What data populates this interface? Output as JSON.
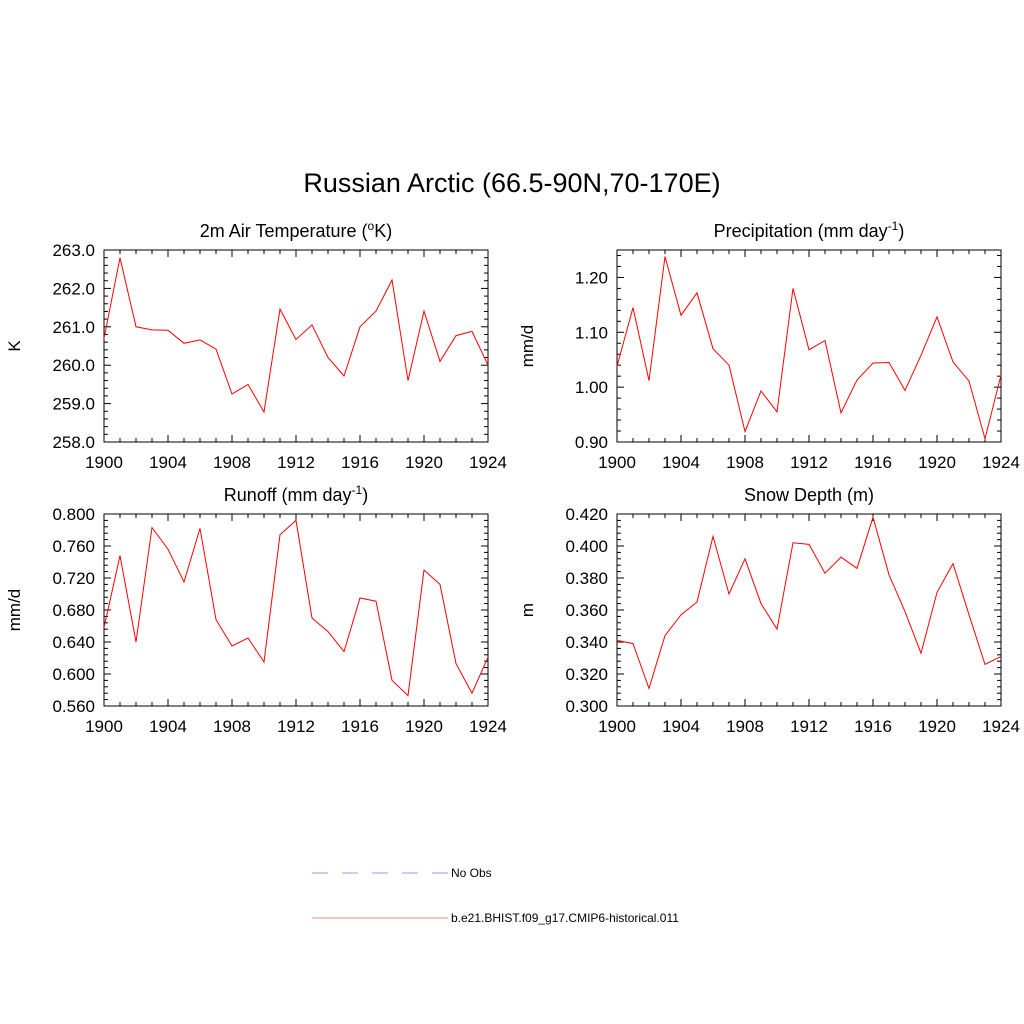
{
  "title": "Russian Arctic (66.5-90N,70-170E)",
  "legend": [
    {
      "label": "No Obs",
      "color": "#9999ff",
      "style": "dashed"
    },
    {
      "label": "b.e21.BHIST.f09_g17.CMIP6-historical.011",
      "color": "#ff0000",
      "style": "solid"
    }
  ],
  "chart_data": [
    {
      "type": "line",
      "title": "2m Air Temperature (°K)",
      "title_parts": {
        "main": "2m Air Temperature (",
        "sup": "o",
        "rest": "K)"
      },
      "ylabel": "K",
      "xlim": [
        1900,
        1924
      ],
      "ylim": [
        258.0,
        263.0
      ],
      "x_ticks": [
        "1900",
        "1904",
        "1908",
        "1912",
        "1916",
        "1920",
        "1924"
      ],
      "y_ticks": [
        "258.0",
        "259.0",
        "260.0",
        "261.0",
        "262.0",
        "263.0"
      ],
      "color": "#ff0000",
      "x": [
        1900,
        1901,
        1902,
        1903,
        1904,
        1905,
        1906,
        1907,
        1908,
        1909,
        1910,
        1911,
        1912,
        1913,
        1914,
        1915,
        1916,
        1917,
        1918,
        1919,
        1920,
        1921,
        1922,
        1923,
        1924
      ],
      "values": [
        260.7,
        262.8,
        261.0,
        260.92,
        260.91,
        260.57,
        260.66,
        260.42,
        259.25,
        259.5,
        258.78,
        261.46,
        260.67,
        261.05,
        260.2,
        259.72,
        261.0,
        261.41,
        262.22,
        259.6,
        261.41,
        260.1,
        260.77,
        260.88,
        260.0
      ]
    },
    {
      "type": "line",
      "title": "Precipitation (mm day-1)",
      "title_parts": {
        "main": "Precipitation (mm day",
        "sup": "-1",
        "rest": ")"
      },
      "ylabel": "mm/d",
      "xlim": [
        1900,
        1924
      ],
      "ylim": [
        0.9,
        1.25
      ],
      "x_ticks": [
        "1900",
        "1904",
        "1908",
        "1912",
        "1916",
        "1920",
        "1924"
      ],
      "y_ticks": [
        "0.90",
        "1.00",
        "1.10",
        "1.20"
      ],
      "color": "#ff0000",
      "x": [
        1900,
        1901,
        1902,
        1903,
        1904,
        1905,
        1906,
        1907,
        1908,
        1909,
        1910,
        1911,
        1912,
        1913,
        1914,
        1915,
        1916,
        1917,
        1918,
        1919,
        1920,
        1921,
        1922,
        1923,
        1924
      ],
      "values": [
        1.038,
        1.145,
        1.012,
        1.238,
        1.131,
        1.172,
        1.07,
        1.04,
        0.919,
        0.993,
        0.955,
        1.18,
        1.068,
        1.085,
        0.953,
        1.013,
        1.044,
        1.045,
        0.994,
        1.058,
        1.128,
        1.046,
        1.011,
        0.906,
        1.022
      ]
    },
    {
      "type": "line",
      "title": "Runoff (mm day-1)",
      "title_parts": {
        "main": "Runoff (mm day",
        "sup": "-1",
        "rest": ")"
      },
      "ylabel": "mm/d",
      "xlim": [
        1900,
        1924
      ],
      "ylim": [
        0.56,
        0.8
      ],
      "x_ticks": [
        "1900",
        "1904",
        "1908",
        "1912",
        "1916",
        "1920",
        "1924"
      ],
      "y_ticks": [
        "0.560",
        "0.600",
        "0.640",
        "0.680",
        "0.720",
        "0.760",
        "0.800"
      ],
      "color": "#ff0000",
      "x": [
        1900,
        1901,
        1902,
        1903,
        1904,
        1905,
        1906,
        1907,
        1908,
        1909,
        1910,
        1911,
        1912,
        1913,
        1914,
        1915,
        1916,
        1917,
        1918,
        1919,
        1920,
        1921,
        1922,
        1923,
        1924
      ],
      "values": [
        0.658,
        0.748,
        0.64,
        0.783,
        0.756,
        0.715,
        0.782,
        0.668,
        0.635,
        0.645,
        0.615,
        0.774,
        0.792,
        0.67,
        0.653,
        0.628,
        0.695,
        0.691,
        0.592,
        0.573,
        0.73,
        0.712,
        0.613,
        0.576,
        0.621
      ]
    },
    {
      "type": "line",
      "title": "Snow Depth (m)",
      "title_parts": {
        "main": "Snow Depth (m)",
        "sup": "",
        "rest": ""
      },
      "ylabel": "m",
      "xlim": [
        1900,
        1924
      ],
      "ylim": [
        0.3,
        0.42
      ],
      "x_ticks": [
        "1900",
        "1904",
        "1908",
        "1912",
        "1916",
        "1920",
        "1924"
      ],
      "y_ticks": [
        "0.300",
        "0.320",
        "0.340",
        "0.360",
        "0.380",
        "0.400",
        "0.420"
      ],
      "color": "#ff0000",
      "x": [
        1900,
        1901,
        1902,
        1903,
        1904,
        1905,
        1906,
        1907,
        1908,
        1909,
        1910,
        1911,
        1912,
        1913,
        1914,
        1915,
        1916,
        1917,
        1918,
        1919,
        1920,
        1921,
        1922,
        1923,
        1924
      ],
      "values": [
        0.341,
        0.339,
        0.311,
        0.344,
        0.357,
        0.365,
        0.406,
        0.37,
        0.392,
        0.364,
        0.348,
        0.402,
        0.401,
        0.383,
        0.393,
        0.386,
        0.418,
        0.382,
        0.359,
        0.333,
        0.371,
        0.389,
        0.357,
        0.326,
        0.331
      ]
    }
  ]
}
